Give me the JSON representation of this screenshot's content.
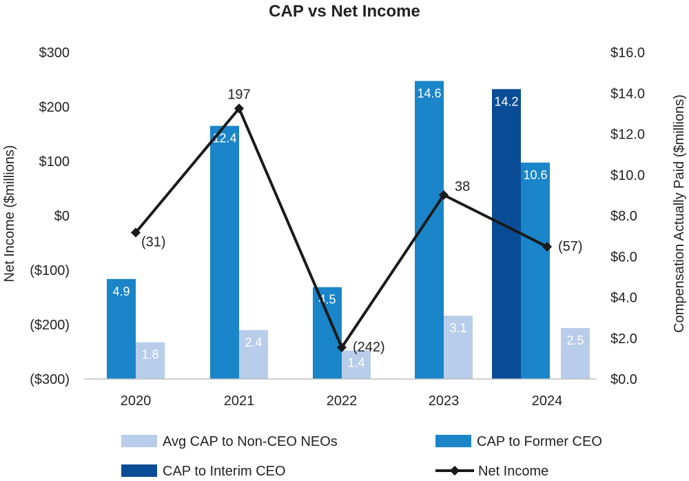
{
  "chart_data": {
    "type": "bar",
    "title": "CAP vs Net Income",
    "categories": [
      "2020",
      "2021",
      "2022",
      "2023",
      "2024"
    ],
    "y_left": {
      "label": "Net Income ($millions)",
      "lim": [
        -300,
        300
      ],
      "ticks": [
        300,
        200,
        100,
        0,
        -100,
        -200,
        -300
      ],
      "tick_labels": [
        "$300",
        "$200",
        "$100",
        "$0",
        "($100)",
        "($200)",
        "($300)"
      ]
    },
    "y_right": {
      "label": "Compensation Actually Paid ($millions)",
      "lim": [
        0,
        16
      ],
      "ticks": [
        16,
        14,
        12,
        10,
        8,
        6,
        4,
        2,
        0
      ],
      "tick_labels": [
        "$16.0",
        "$14.0",
        "$12.0",
        "$10.0",
        "$8.0",
        "$6.0",
        "$4.0",
        "$2.0",
        "$0.0"
      ]
    },
    "series": [
      {
        "name": "CAP to Former CEO",
        "axis": "right",
        "color": "#1a85c8",
        "values": [
          4.9,
          12.4,
          4.5,
          14.6,
          10.6
        ],
        "labels": [
          "4.9",
          "12.4",
          "4.5",
          "14.6",
          "10.6"
        ]
      },
      {
        "name": "CAP to Interim CEO",
        "axis": "right",
        "color": "#0a4d96",
        "values": [
          null,
          null,
          null,
          null,
          14.2
        ],
        "labels": [
          "",
          "",
          "",
          "",
          "14.2"
        ]
      },
      {
        "name": "Avg CAP to Non-CEO NEOs",
        "axis": "right",
        "color": "#b8cde9",
        "values": [
          1.8,
          2.4,
          1.4,
          3.1,
          2.5
        ],
        "labels": [
          "1.8",
          "2.4",
          "1.4",
          "3.1",
          "2.5"
        ]
      },
      {
        "name": "Net Income",
        "axis": "left",
        "type": "line",
        "color": "#1a1a1a",
        "values": [
          -31,
          197,
          -242,
          38,
          -57
        ],
        "labels": [
          "(31)",
          "197",
          "(242)",
          "38",
          "(57)"
        ]
      }
    ],
    "legend": {
      "placement": "bottom",
      "items": [
        {
          "name": "Avg CAP to Non-CEO NEOs",
          "kind": "bar",
          "color": "#b8cde9"
        },
        {
          "name": "CAP to Former CEO",
          "kind": "bar",
          "color": "#1a85c8"
        },
        {
          "name": "CAP to Interim CEO",
          "kind": "bar",
          "color": "#0a4d96"
        },
        {
          "name": "Net Income",
          "kind": "line",
          "color": "#1a1a1a"
        }
      ]
    }
  }
}
